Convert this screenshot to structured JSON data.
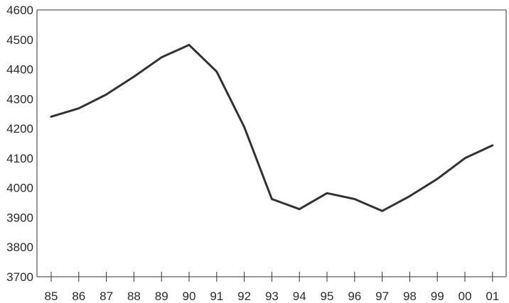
{
  "chart_data": {
    "type": "line",
    "categories": [
      "85",
      "86",
      "87",
      "88",
      "89",
      "90",
      "91",
      "92",
      "93",
      "94",
      "95",
      "96",
      "97",
      "98",
      "99",
      "00",
      "01"
    ],
    "series": [
      {
        "values": [
          4240,
          4268,
          4315,
          4375,
          4440,
          4482,
          4392,
          4205,
          3962,
          3928,
          3982,
          3962,
          3922,
          3972,
          4030,
          4100,
          4143
        ],
        "color": "#333333"
      }
    ],
    "y_ticks": [
      "3700",
      "3800",
      "3900",
      "4000",
      "4100",
      "4200",
      "4300",
      "4400",
      "4500",
      "4600"
    ],
    "ylim": [
      3700,
      4600
    ],
    "grid": false,
    "legend": "none"
  }
}
